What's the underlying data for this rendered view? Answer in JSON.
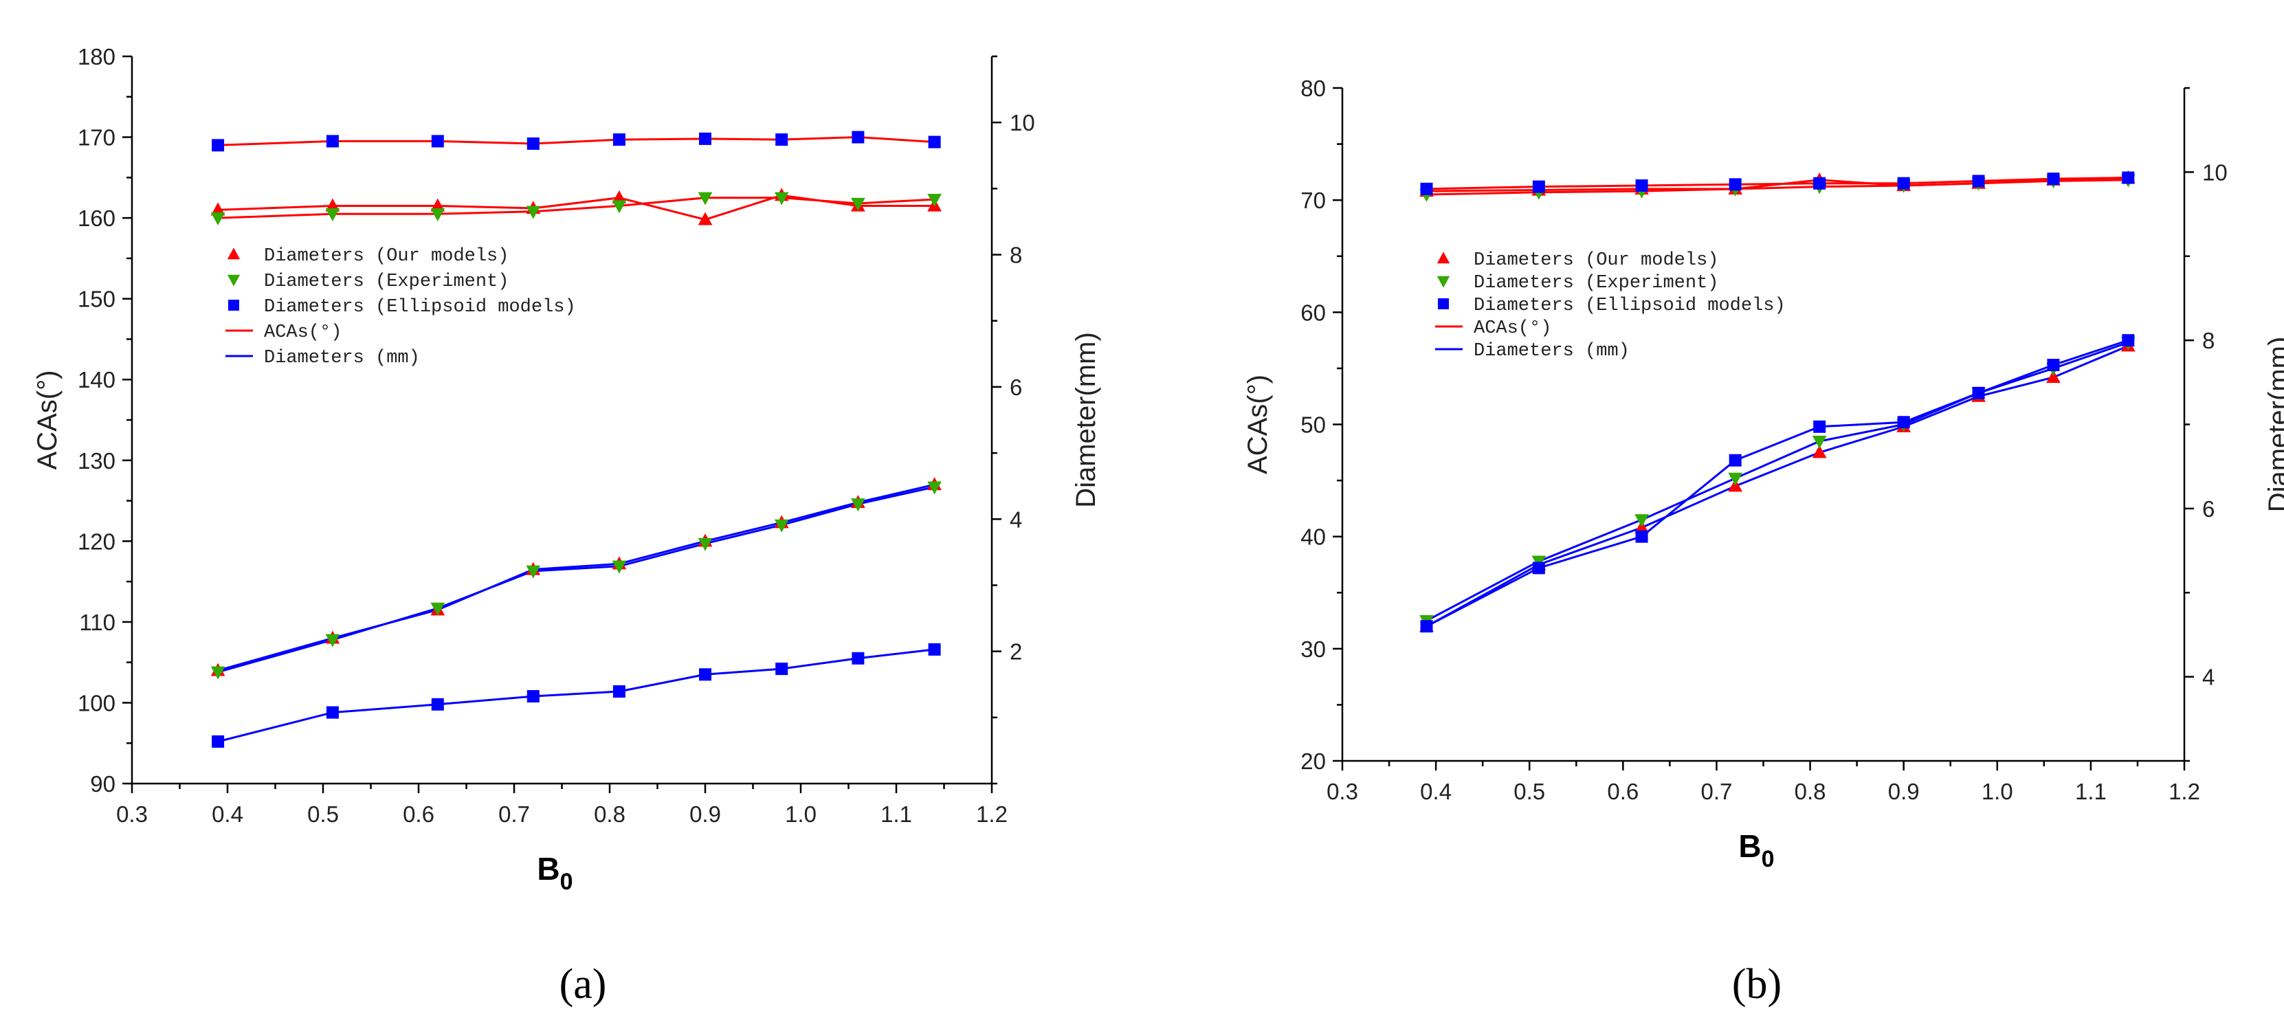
{
  "colors": {
    "red": "#ff0000",
    "green": "#33aa00",
    "blue": "#0000ff"
  },
  "panel_labels": {
    "a": "(a)",
    "b": "(b)"
  },
  "chart_data": [
    {
      "type": "line",
      "panel": "(a)",
      "xlabel": "B",
      "xlabel_sub": "0",
      "ylabel": "ACAs(°)",
      "y2label": "Diameter(mm)",
      "xlim": [
        0.3,
        1.2
      ],
      "xticks": [
        0.3,
        0.4,
        0.5,
        0.6,
        0.7,
        0.8,
        0.9,
        1.0,
        1.1,
        1.2
      ],
      "xticklabels": [
        "0.3",
        "0.4",
        "0.5",
        "0.6",
        "0.7",
        "0.8",
        "0.9",
        "1.0",
        "1.1",
        "1.2"
      ],
      "ylim": [
        90,
        180
      ],
      "yticks": [
        90,
        100,
        110,
        120,
        130,
        140,
        150,
        160,
        170,
        180
      ],
      "y2lim": [
        0,
        11
      ],
      "y2ticks": [
        2,
        4,
        6,
        8,
        10
      ],
      "legend": [
        {
          "label": "Diameters (Our models)",
          "marker": "triangle-up",
          "color": "#ff0000"
        },
        {
          "label": "Diameters (Experiment)",
          "marker": "triangle-down",
          "color": "#33aa00"
        },
        {
          "label": "Diameters (Ellipsoid models)",
          "marker": "square",
          "color": "#0000ff"
        },
        {
          "label": "ACAs(°)",
          "marker": "line",
          "color": "#ff0000"
        },
        {
          "label": "Diameters (mm)",
          "marker": "line",
          "color": "#0000ff"
        }
      ],
      "x": [
        0.39,
        0.51,
        0.62,
        0.72,
        0.81,
        0.9,
        0.98,
        1.06,
        1.14
      ],
      "series": [
        {
          "name": "ACAs (Our models)",
          "axis": "left",
          "line": "#ff0000",
          "marker": "triangle-up",
          "mcolor": "#ff0000",
          "values": [
            161.0,
            161.5,
            161.5,
            161.2,
            162.5,
            159.8,
            162.8,
            161.5,
            161.5
          ]
        },
        {
          "name": "ACAs (Experiment)",
          "axis": "left",
          "line": "#ff0000",
          "marker": "triangle-down",
          "mcolor": "#33aa00",
          "values": [
            160.0,
            160.5,
            160.5,
            160.8,
            161.5,
            162.5,
            162.5,
            161.8,
            162.3
          ]
        },
        {
          "name": "ACAs (Ellipsoid models)",
          "axis": "left",
          "line": "#ff0000",
          "marker": "square",
          "mcolor": "#0000ff",
          "values": [
            169.0,
            169.5,
            169.5,
            169.2,
            169.7,
            169.8,
            169.7,
            170.0,
            169.4
          ]
        },
        {
          "name": "Diameters (Our models)",
          "axis": "left",
          "line": "#0000ff",
          "marker": "triangle-up",
          "mcolor": "#ff0000",
          "values": [
            104.0,
            108.0,
            111.5,
            116.5,
            117.2,
            120.0,
            122.3,
            124.8,
            127.0
          ]
        },
        {
          "name": "Diameters (Experiment)",
          "axis": "left",
          "line": "#0000ff",
          "marker": "triangle-down",
          "mcolor": "#33aa00",
          "values": [
            103.8,
            107.8,
            111.7,
            116.3,
            116.9,
            119.7,
            122.0,
            124.6,
            126.7
          ]
        },
        {
          "name": "Diameters (Ellipsoid models)",
          "axis": "left",
          "line": "#0000ff",
          "marker": "square",
          "mcolor": "#0000ff",
          "values": [
            95.2,
            98.8,
            99.8,
            100.8,
            101.4,
            103.5,
            104.2,
            105.5,
            106.6
          ]
        }
      ]
    },
    {
      "type": "line",
      "panel": "(b)",
      "xlabel": "B",
      "xlabel_sub": "0",
      "ylabel": "ACAs(°)",
      "y2label": "Diameter(mm)",
      "xlim": [
        0.3,
        1.2
      ],
      "xticks": [
        0.3,
        0.4,
        0.5,
        0.6,
        0.7,
        0.8,
        0.9,
        1.0,
        1.1,
        1.2
      ],
      "xticklabels": [
        "0.3",
        "0.4",
        "0.5",
        "0.6",
        "0.7",
        "0.8",
        "0.9",
        "1.0",
        "1.1",
        "1.2"
      ],
      "ylim": [
        20,
        80
      ],
      "yticks": [
        20,
        30,
        40,
        50,
        60,
        70,
        80
      ],
      "y2lim": [
        3,
        11
      ],
      "y2ticks": [
        4,
        6,
        8,
        10
      ],
      "legend": [
        {
          "label": "Diameters (Our models)",
          "marker": "triangle-up",
          "color": "#ff0000"
        },
        {
          "label": "Diameters (Experiment)",
          "marker": "triangle-down",
          "color": "#33aa00"
        },
        {
          "label": "Diameters (Ellipsoid models)",
          "marker": "square",
          "color": "#0000ff"
        },
        {
          "label": "ACAs(°)",
          "marker": "line",
          "color": "#ff0000"
        },
        {
          "label": "Diameters (mm)",
          "marker": "line",
          "color": "#0000ff"
        }
      ],
      "x": [
        0.39,
        0.51,
        0.62,
        0.72,
        0.81,
        0.9,
        0.98,
        1.06,
        1.14
      ],
      "series": [
        {
          "name": "ACAs (Our models)",
          "axis": "left",
          "line": "#ff0000",
          "marker": "triangle-up",
          "mcolor": "#ff0000",
          "values": [
            70.8,
            70.9,
            71.0,
            71.0,
            71.8,
            71.3,
            71.5,
            71.8,
            72.0
          ]
        },
        {
          "name": "ACAs (Experiment)",
          "axis": "left",
          "line": "#ff0000",
          "marker": "triangle-down",
          "mcolor": "#33aa00",
          "values": [
            70.5,
            70.7,
            70.8,
            71.0,
            71.2,
            71.3,
            71.5,
            71.7,
            71.8
          ]
        },
        {
          "name": "ACAs (Ellipsoid models)",
          "axis": "left",
          "line": "#ff0000",
          "marker": "square",
          "mcolor": "#0000ff",
          "values": [
            71.0,
            71.2,
            71.3,
            71.4,
            71.5,
            71.5,
            71.7,
            71.9,
            72.0
          ]
        },
        {
          "name": "Diameters (Our models)",
          "axis": "left",
          "line": "#0000ff",
          "marker": "triangle-up",
          "mcolor": "#ff0000",
          "values": [
            32.0,
            37.5,
            40.8,
            44.5,
            47.5,
            49.8,
            52.5,
            54.2,
            57.0
          ]
        },
        {
          "name": "Diameters (Experiment)",
          "axis": "left",
          "line": "#0000ff",
          "marker": "triangle-down",
          "mcolor": "#33aa00",
          "values": [
            32.5,
            37.8,
            41.5,
            45.2,
            48.5,
            50.0,
            52.8,
            55.0,
            57.3
          ]
        },
        {
          "name": "Diameters (Ellipsoid models)",
          "axis": "left",
          "line": "#0000ff",
          "marker": "square",
          "mcolor": "#0000ff",
          "values": [
            32.0,
            37.2,
            40.0,
            46.8,
            49.8,
            50.2,
            52.8,
            55.3,
            57.5
          ]
        }
      ]
    }
  ]
}
